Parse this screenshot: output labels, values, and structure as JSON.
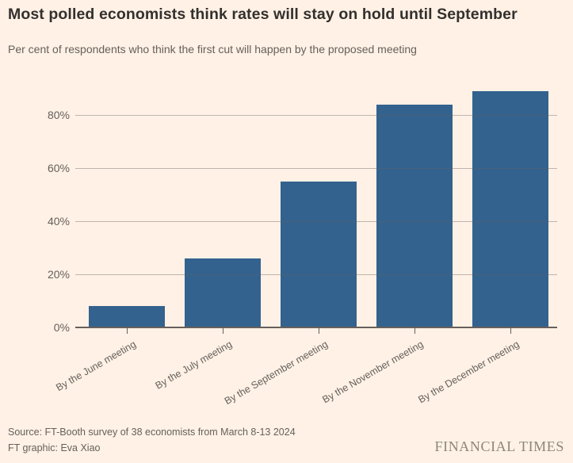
{
  "header": {
    "title": "Most polled economists think rates will stay on hold until September",
    "subtitle": "Per cent of respondents who think the first cut will happen by the proposed meeting"
  },
  "chart_data": {
    "type": "bar",
    "title": "Most polled economists think rates will stay on hold until September",
    "subtitle": "Per cent of respondents who think the first cut will happen by the proposed meeting",
    "categories": [
      "By the June meeting",
      "By the July meeting",
      "By the September meeting",
      "By the November meeting",
      "By the December meeting"
    ],
    "values": [
      8,
      26,
      55,
      84,
      89
    ],
    "xlabel": "",
    "ylabel": "",
    "ylim": [
      0,
      90
    ],
    "yticks": [
      0,
      20,
      40,
      60,
      80
    ],
    "ytick_labels": [
      "0%",
      "20%",
      "40%",
      "60%",
      "80%"
    ],
    "grid": true,
    "legend": false,
    "bar_color": "#33628E",
    "background_color": "#FFF1E5"
  },
  "footer": {
    "source_line1": "Source: FT-Booth survey of 38 economists from March 8-13 2024",
    "source_line2": "FT graphic: Eva Xiao",
    "brand": "FINANCIAL TIMES"
  },
  "colors": {
    "background": "#FFF1E5",
    "title_text": "#33302E",
    "secondary_text": "#66605C",
    "bar": "#33628E",
    "gridline": "#BFB8B1",
    "brand_text": "#8D867A"
  }
}
